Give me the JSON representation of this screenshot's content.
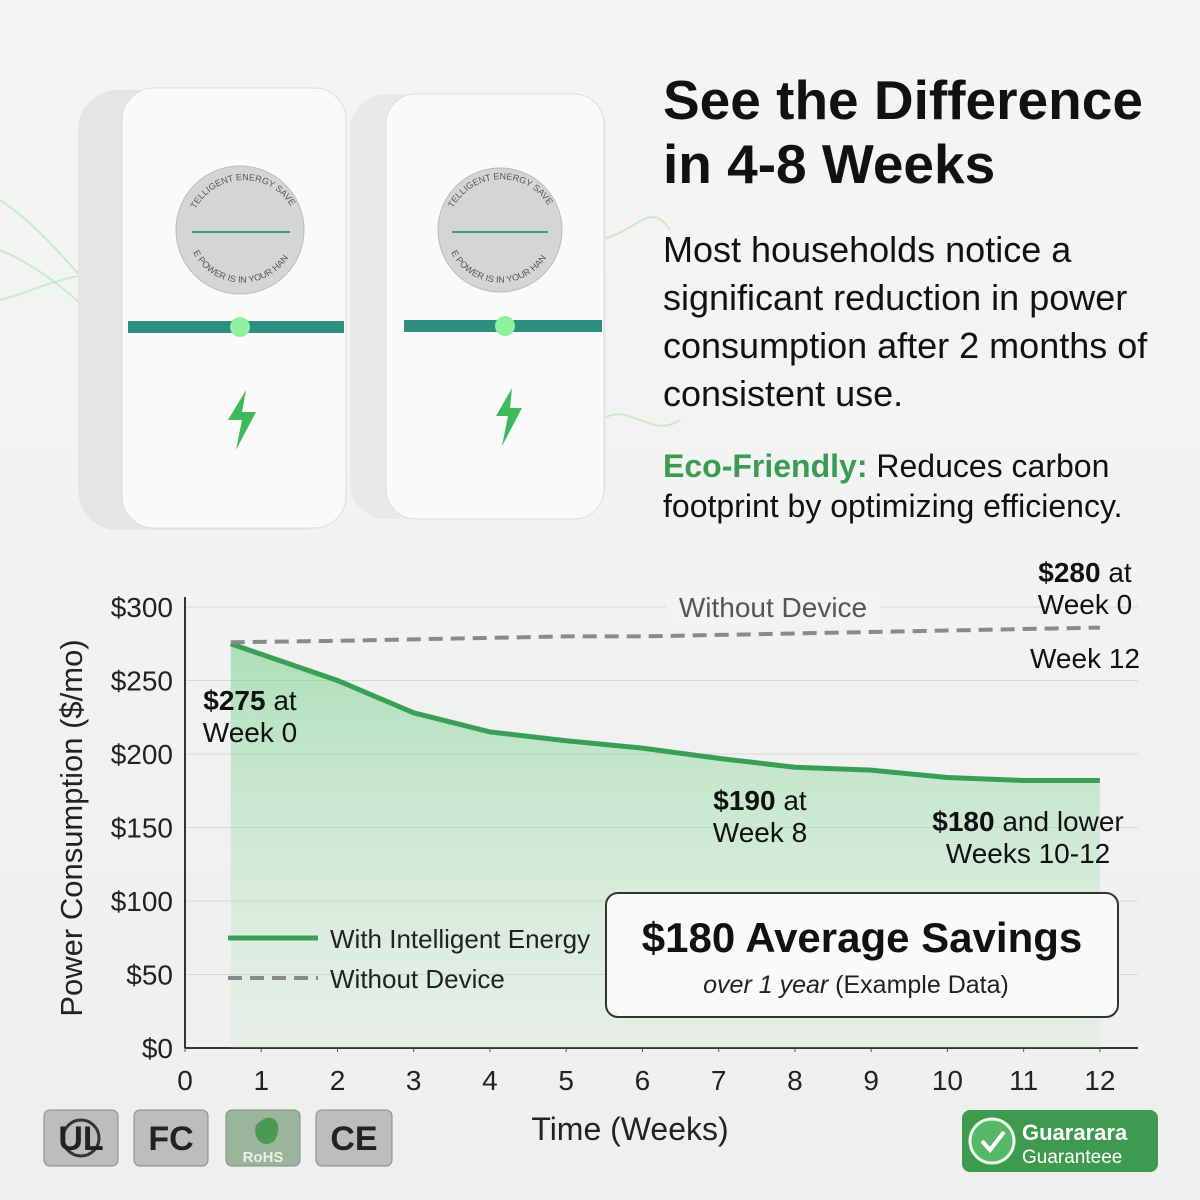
{
  "header": {
    "title": "See the Difference in 4-8 Weeks",
    "description": "Most households notice a significant reduction in power consumption after 2 months of consistent use.",
    "eco_label": "Eco-Friendly:",
    "eco_text": "Reduces carbon footprint by optimizing efficiency."
  },
  "products": [
    {
      "label_top": "INTELLIGENT ENERGY SAVER",
      "label_bottom": "THE POWER IS IN YOUR HANDS"
    },
    {
      "label_top": "INTELLIGENT ENERGY SAVER",
      "label_bottom": "THE POWER IS IN YOUR HANDS"
    }
  ],
  "chart_data": {
    "type": "line",
    "x_label": "Time (Weeks)",
    "y_label": "Power Consumption ($/mo)",
    "x": [
      0.6,
      2,
      3,
      4,
      5,
      6,
      7,
      8,
      9,
      10,
      11,
      12
    ],
    "series": [
      {
        "name": "With Intelligent Energy",
        "color": "#3a9f56",
        "values": [
          275,
          250,
          228,
          215,
          209,
          204,
          197,
          191,
          189,
          184,
          182,
          182
        ]
      },
      {
        "name": "Without Device",
        "color": "#8a8a8a",
        "dashed": true,
        "values": [
          276,
          277,
          278,
          279,
          280,
          280,
          281,
          282,
          283,
          284,
          285,
          286
        ]
      }
    ],
    "xlim": [
      0,
      12.5
    ],
    "xticks": [
      0,
      1,
      2,
      3,
      4,
      5,
      6,
      7,
      8,
      9,
      10,
      11,
      12
    ],
    "ylim": [
      0,
      300
    ],
    "yticks": [
      {
        "value": 0,
        "label": "$0"
      },
      {
        "value": 50,
        "label": "$50"
      },
      {
        "value": 100,
        "label": "$100"
      },
      {
        "value": 150,
        "label": "$150"
      },
      {
        "value": 200,
        "label": "$200"
      },
      {
        "value": 250,
        "label": "$250"
      },
      {
        "value": 300,
        "label": "$300"
      }
    ],
    "grid": true,
    "annotations": [
      {
        "bold": "$275",
        "text": "at",
        "line2": "Week 0"
      },
      {
        "bold": "$280",
        "text": "at",
        "line2": "Week 0"
      },
      {
        "line2": "Week 12"
      },
      {
        "bold": "$190",
        "text": "at",
        "line2": "Week 8"
      },
      {
        "bold": "$180",
        "text": "and lower",
        "line2": "Weeks 10-12"
      }
    ],
    "savings_title": "$180 Average Savings",
    "savings_period": "over 1 year",
    "savings_note": "(Example Data)"
  },
  "badges": [
    "UL",
    "FC",
    "RoHS",
    "CE"
  ],
  "guarantee": {
    "line1": "Guararara",
    "line2": "Guaranteee"
  }
}
